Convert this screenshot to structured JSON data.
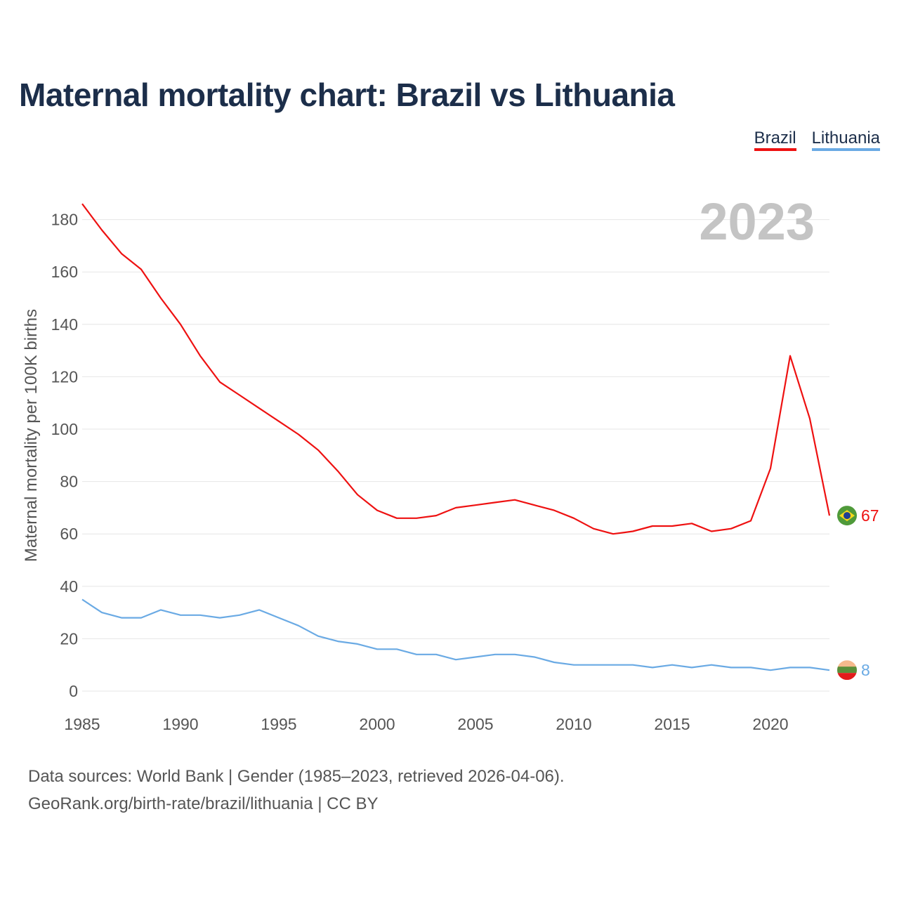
{
  "title": "Maternal mortality chart: Brazil vs Lithuania",
  "legend": {
    "items": [
      {
        "label": "Brazil",
        "color": "#ee1111"
      },
      {
        "label": "Lithuania",
        "color": "#6aaae4"
      }
    ]
  },
  "year_badge": "2023",
  "end_labels": {
    "brazil": "67",
    "lithuania": "8"
  },
  "source": {
    "line1": "Data sources: World Bank | Gender (1985–2023, retrieved 2026-04-06).",
    "line2": "GeoRank.org/birth-rate/brazil/lithuania | CC BY"
  },
  "chart_data": {
    "type": "line",
    "title": "Maternal mortality chart: Brazil vs Lithuania",
    "xlabel": "",
    "ylabel": "Maternal mortality per 100K births",
    "xlim": [
      1985,
      2023
    ],
    "ylim": [
      0,
      190
    ],
    "xticks": [
      1985,
      1990,
      1995,
      2000,
      2005,
      2010,
      2015,
      2020
    ],
    "yticks": [
      0,
      20,
      40,
      60,
      80,
      100,
      120,
      140,
      160,
      180
    ],
    "grid": true,
    "legend_position": "top-right",
    "x": [
      1985,
      1986,
      1987,
      1988,
      1989,
      1990,
      1991,
      1992,
      1993,
      1994,
      1995,
      1996,
      1997,
      1998,
      1999,
      2000,
      2001,
      2002,
      2003,
      2004,
      2005,
      2006,
      2007,
      2008,
      2009,
      2010,
      2011,
      2012,
      2013,
      2014,
      2015,
      2016,
      2017,
      2018,
      2019,
      2020,
      2021,
      2022,
      2023
    ],
    "series": [
      {
        "name": "Brazil",
        "color": "#ee1111",
        "values": [
          186,
          176,
          167,
          161,
          150,
          140,
          128,
          118,
          113,
          108,
          103,
          98,
          92,
          84,
          75,
          69,
          66,
          66,
          67,
          70,
          71,
          72,
          73,
          71,
          69,
          66,
          62,
          60,
          61,
          63,
          63,
          64,
          61,
          62,
          65,
          85,
          128,
          104,
          67
        ]
      },
      {
        "name": "Lithuania",
        "color": "#6aaae4",
        "values": [
          35,
          30,
          28,
          28,
          31,
          29,
          29,
          28,
          29,
          31,
          28,
          25,
          21,
          19,
          18,
          16,
          16,
          14,
          14,
          12,
          13,
          14,
          14,
          13,
          11,
          10,
          10,
          10,
          10,
          9,
          10,
          9,
          10,
          9,
          9,
          8,
          9,
          9,
          8
        ]
      }
    ]
  }
}
